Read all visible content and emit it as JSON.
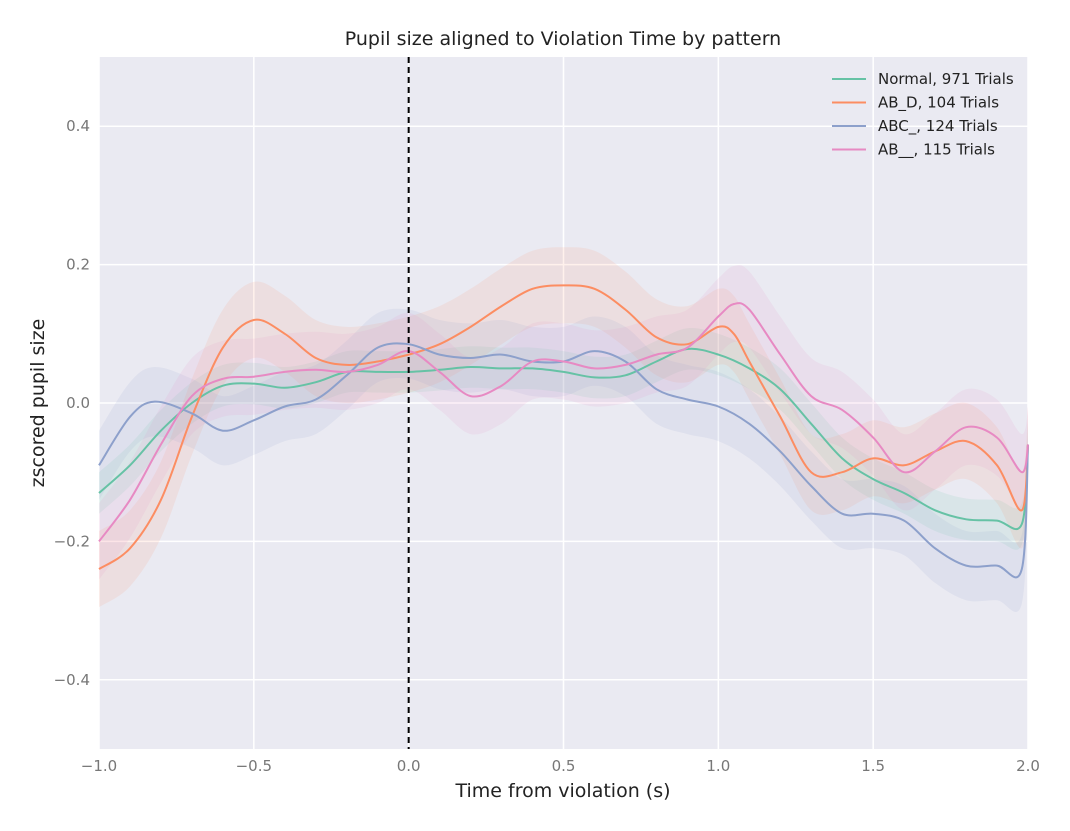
{
  "chart_data": {
    "type": "line",
    "title": "Pupil size aligned to Violation Time by pattern",
    "xlabel": "Time from violation (s)",
    "ylabel": "zscored pupil size",
    "xlim": [
      -1.0,
      2.0
    ],
    "ylim": [
      -0.5,
      0.5
    ],
    "x_ticks": [
      -1.0,
      -0.5,
      0.0,
      0.5,
      1.0,
      1.5,
      2.0
    ],
    "x_tick_labels": [
      "−1.0",
      "−0.5",
      "0.0",
      "0.5",
      "1.0",
      "1.5",
      "2.0"
    ],
    "y_ticks": [
      -0.4,
      -0.2,
      0.0,
      0.2,
      0.4
    ],
    "y_tick_labels": [
      "−0.4",
      "−0.2",
      "0.0",
      "0.2",
      "0.4"
    ],
    "grid": true,
    "legend_position": "top-right",
    "vertical_marker": {
      "x": 0.0,
      "style": "dashed",
      "color": "#000000"
    },
    "background": "#eaeaf2",
    "series": [
      {
        "name": "Normal, 971 Trials",
        "color": "#66c2a5",
        "band": 0.03,
        "points": [
          [
            -1.0,
            -0.13
          ],
          [
            -0.9,
            -0.09
          ],
          [
            -0.8,
            -0.04
          ],
          [
            -0.7,
            0.0
          ],
          [
            -0.6,
            0.025
          ],
          [
            -0.5,
            0.028
          ],
          [
            -0.4,
            0.022
          ],
          [
            -0.3,
            0.03
          ],
          [
            -0.2,
            0.045
          ],
          [
            -0.1,
            0.045
          ],
          [
            0.0,
            0.045
          ],
          [
            0.1,
            0.048
          ],
          [
            0.2,
            0.052
          ],
          [
            0.3,
            0.05
          ],
          [
            0.4,
            0.05
          ],
          [
            0.5,
            0.045
          ],
          [
            0.6,
            0.037
          ],
          [
            0.7,
            0.04
          ],
          [
            0.8,
            0.06
          ],
          [
            0.9,
            0.078
          ],
          [
            1.0,
            0.07
          ],
          [
            1.1,
            0.05
          ],
          [
            1.2,
            0.02
          ],
          [
            1.3,
            -0.03
          ],
          [
            1.4,
            -0.08
          ],
          [
            1.5,
            -0.11
          ],
          [
            1.6,
            -0.13
          ],
          [
            1.7,
            -0.155
          ],
          [
            1.8,
            -0.168
          ],
          [
            1.9,
            -0.17
          ],
          [
            1.98,
            -0.175
          ],
          [
            2.0,
            -0.06
          ]
        ]
      },
      {
        "name": "AB_D, 104 Trials",
        "color": "#fc8d62",
        "band": 0.055,
        "points": [
          [
            -1.0,
            -0.24
          ],
          [
            -0.9,
            -0.21
          ],
          [
            -0.8,
            -0.14
          ],
          [
            -0.7,
            -0.02
          ],
          [
            -0.6,
            0.08
          ],
          [
            -0.5,
            0.12
          ],
          [
            -0.4,
            0.1
          ],
          [
            -0.3,
            0.065
          ],
          [
            -0.2,
            0.055
          ],
          [
            -0.1,
            0.06
          ],
          [
            0.0,
            0.07
          ],
          [
            0.1,
            0.085
          ],
          [
            0.2,
            0.11
          ],
          [
            0.3,
            0.14
          ],
          [
            0.4,
            0.165
          ],
          [
            0.5,
            0.17
          ],
          [
            0.6,
            0.165
          ],
          [
            0.7,
            0.135
          ],
          [
            0.8,
            0.095
          ],
          [
            0.9,
            0.085
          ],
          [
            1.0,
            0.11
          ],
          [
            1.05,
            0.1
          ],
          [
            1.1,
            0.06
          ],
          [
            1.2,
            -0.02
          ],
          [
            1.3,
            -0.1
          ],
          [
            1.4,
            -0.1
          ],
          [
            1.5,
            -0.08
          ],
          [
            1.6,
            -0.09
          ],
          [
            1.7,
            -0.07
          ],
          [
            1.8,
            -0.055
          ],
          [
            1.9,
            -0.09
          ],
          [
            1.98,
            -0.155
          ],
          [
            2.0,
            -0.06
          ]
        ]
      },
      {
        "name": "ABC_, 124 Trials",
        "color": "#8da0cb",
        "band": 0.05,
        "points": [
          [
            -1.0,
            -0.09
          ],
          [
            -0.9,
            -0.02
          ],
          [
            -0.82,
            0.002
          ],
          [
            -0.7,
            -0.015
          ],
          [
            -0.6,
            -0.04
          ],
          [
            -0.5,
            -0.025
          ],
          [
            -0.4,
            -0.005
          ],
          [
            -0.3,
            0.005
          ],
          [
            -0.2,
            0.04
          ],
          [
            -0.1,
            0.08
          ],
          [
            0.0,
            0.085
          ],
          [
            0.1,
            0.07
          ],
          [
            0.2,
            0.065
          ],
          [
            0.3,
            0.07
          ],
          [
            0.4,
            0.06
          ],
          [
            0.5,
            0.06
          ],
          [
            0.6,
            0.075
          ],
          [
            0.7,
            0.06
          ],
          [
            0.8,
            0.02
          ],
          [
            0.9,
            0.005
          ],
          [
            1.0,
            -0.005
          ],
          [
            1.1,
            -0.03
          ],
          [
            1.2,
            -0.07
          ],
          [
            1.3,
            -0.12
          ],
          [
            1.4,
            -0.16
          ],
          [
            1.5,
            -0.16
          ],
          [
            1.6,
            -0.17
          ],
          [
            1.7,
            -0.21
          ],
          [
            1.8,
            -0.235
          ],
          [
            1.9,
            -0.235
          ],
          [
            1.98,
            -0.24
          ],
          [
            2.0,
            -0.06
          ]
        ]
      },
      {
        "name": "AB__, 115 Trials",
        "color": "#e78ac3",
        "band": 0.055,
        "points": [
          [
            -1.0,
            -0.2
          ],
          [
            -0.9,
            -0.14
          ],
          [
            -0.8,
            -0.06
          ],
          [
            -0.7,
            0.01
          ],
          [
            -0.6,
            0.035
          ],
          [
            -0.5,
            0.038
          ],
          [
            -0.4,
            0.045
          ],
          [
            -0.3,
            0.048
          ],
          [
            -0.2,
            0.045
          ],
          [
            -0.1,
            0.055
          ],
          [
            0.0,
            0.075
          ],
          [
            0.1,
            0.045
          ],
          [
            0.2,
            0.01
          ],
          [
            0.3,
            0.025
          ],
          [
            0.4,
            0.06
          ],
          [
            0.5,
            0.06
          ],
          [
            0.6,
            0.05
          ],
          [
            0.7,
            0.055
          ],
          [
            0.8,
            0.07
          ],
          [
            0.9,
            0.08
          ],
          [
            1.0,
            0.125
          ],
          [
            1.05,
            0.143
          ],
          [
            1.1,
            0.135
          ],
          [
            1.2,
            0.07
          ],
          [
            1.3,
            0.01
          ],
          [
            1.4,
            -0.01
          ],
          [
            1.5,
            -0.05
          ],
          [
            1.6,
            -0.1
          ],
          [
            1.7,
            -0.07
          ],
          [
            1.8,
            -0.035
          ],
          [
            1.9,
            -0.05
          ],
          [
            1.98,
            -0.1
          ],
          [
            2.0,
            -0.06
          ]
        ]
      }
    ]
  }
}
